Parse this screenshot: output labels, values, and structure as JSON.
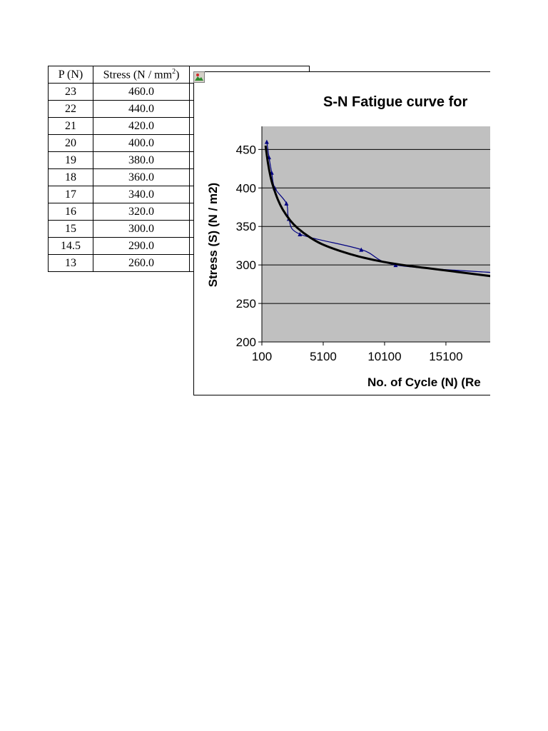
{
  "table": {
    "headers": [
      "P (N)",
      "Stress (N / mm",
      "2",
      ")"
    ],
    "rows": [
      [
        "23",
        "460.0"
      ],
      [
        "22",
        "440.0"
      ],
      [
        "21",
        "420.0"
      ],
      [
        "20",
        "400.0"
      ],
      [
        "19",
        "380.0"
      ],
      [
        "18",
        "360.0"
      ],
      [
        "17",
        "340.0"
      ],
      [
        "16",
        "320.0"
      ],
      [
        "15",
        "300.0"
      ],
      [
        "14.5",
        "290.0"
      ],
      [
        "13",
        "260.0"
      ]
    ]
  },
  "chart_data": {
    "type": "line",
    "title": "S-N Fatigue curve for",
    "xlabel": "No. of Cycle (N) (Re",
    "ylabel": "Stress (S) (N / m2)",
    "xlim": [
      100,
      19000
    ],
    "ylim": [
      200,
      480
    ],
    "x_ticks": [
      "100",
      "5100",
      "10100",
      "15100",
      "2"
    ],
    "x_tick_values": [
      100,
      5100,
      10100,
      15100,
      20100
    ],
    "y_ticks": [
      "200",
      "250",
      "300",
      "350",
      "400",
      "450"
    ],
    "y_tick_values": [
      200,
      250,
      300,
      350,
      400,
      450
    ],
    "grid": true,
    "plot_background": "#c0c0c0",
    "series": [
      {
        "color": "#000080",
        "marker": "triangle",
        "x": [
          500,
          680,
          900,
          1150,
          2100,
          2300,
          3200,
          8200,
          11000,
          19000
        ],
        "y": [
          460,
          440,
          420,
          400,
          380,
          360,
          340,
          320,
          300,
          290
        ]
      },
      {
        "color": "#000000",
        "style": "trendline",
        "x": [
          400,
          600,
          800,
          1000,
          1400,
          1800,
          2400,
          3000,
          4000,
          5000,
          6500,
          8000,
          10000,
          12000,
          14000,
          16000,
          19000
        ],
        "y": [
          455,
          432,
          415,
          403,
          385,
          372,
          358,
          348,
          336,
          327,
          318,
          311,
          304,
          299,
          295,
          291,
          285
        ]
      }
    ]
  }
}
